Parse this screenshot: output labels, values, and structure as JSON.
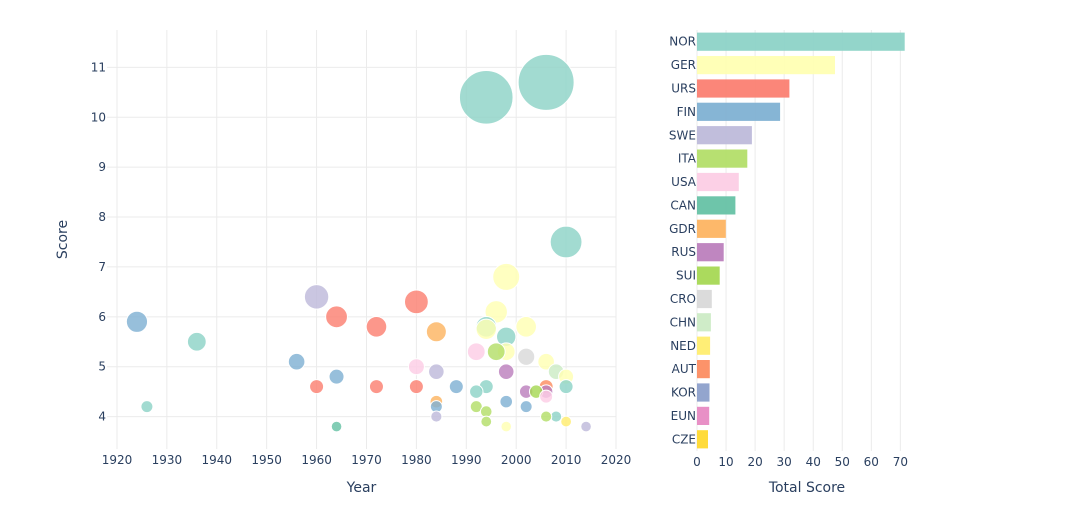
{
  "chart_data": [
    {
      "type": "scatter",
      "xlabel": "Year",
      "ylabel": "Score",
      "xlim": [
        1918,
        2020
      ],
      "ylim": [
        3.35,
        11.75
      ],
      "x_ticks": [
        "1920",
        "1930",
        "1940",
        "1950",
        "1960",
        "1970",
        "1980",
        "1990",
        "2000",
        "2010",
        "2020"
      ],
      "y_ticks": [
        "4",
        "5",
        "6",
        "7",
        "8",
        "9",
        "10",
        "11"
      ],
      "grid": true,
      "bubble_size": "score",
      "points": [
        {
          "country": "NOR",
          "x": 1994,
          "y": 10.4,
          "color": "#8dd3c7"
        },
        {
          "country": "NOR",
          "x": 2006,
          "y": 10.7,
          "color": "#8dd3c7"
        },
        {
          "country": "NOR",
          "x": 2010,
          "y": 7.5,
          "color": "#8dd3c7"
        },
        {
          "country": "NOR",
          "x": 1936,
          "y": 5.5,
          "color": "#8dd3c7"
        },
        {
          "country": "NOR",
          "x": 1994,
          "y": 5.8,
          "color": "#8dd3c7"
        },
        {
          "country": "NOR",
          "x": 1998,
          "y": 5.6,
          "color": "#8dd3c7"
        },
        {
          "country": "NOR",
          "x": 1926,
          "y": 4.2,
          "color": "#8dd3c7"
        },
        {
          "country": "NOR",
          "x": 1994,
          "y": 4.6,
          "color": "#8dd3c7"
        },
        {
          "country": "NOR",
          "x": 1992,
          "y": 4.5,
          "color": "#8dd3c7"
        },
        {
          "country": "NOR",
          "x": 2010,
          "y": 4.6,
          "color": "#8dd3c7"
        },
        {
          "country": "NOR",
          "x": 2008,
          "y": 4.0,
          "color": "#8dd3c7"
        },
        {
          "country": "GER",
          "x": 1998,
          "y": 6.8,
          "color": "#ffffb3"
        },
        {
          "country": "GER",
          "x": 1996,
          "y": 6.1,
          "color": "#ffffb3"
        },
        {
          "country": "GER",
          "x": 2002,
          "y": 5.8,
          "color": "#ffffb3"
        },
        {
          "country": "GER",
          "x": 1994,
          "y": 5.75,
          "color": "#ffffb3"
        },
        {
          "country": "GER",
          "x": 2006,
          "y": 5.1,
          "color": "#ffffb3"
        },
        {
          "country": "GER",
          "x": 2010,
          "y": 4.8,
          "color": "#ffffb3"
        },
        {
          "country": "GER",
          "x": 1998,
          "y": 5.3,
          "color": "#ffffb3"
        },
        {
          "country": "GER",
          "x": 1998,
          "y": 3.8,
          "color": "#ffffb3"
        },
        {
          "country": "URS",
          "x": 1980,
          "y": 6.3,
          "color": "#fb8072"
        },
        {
          "country": "URS",
          "x": 1964,
          "y": 6.0,
          "color": "#fb8072"
        },
        {
          "country": "URS",
          "x": 1972,
          "y": 5.8,
          "color": "#fb8072"
        },
        {
          "country": "URS",
          "x": 1960,
          "y": 4.6,
          "color": "#fb8072"
        },
        {
          "country": "URS",
          "x": 1972,
          "y": 4.6,
          "color": "#fb8072"
        },
        {
          "country": "URS",
          "x": 1980,
          "y": 4.6,
          "color": "#fb8072"
        },
        {
          "country": "FIN",
          "x": 1924,
          "y": 5.9,
          "color": "#80b1d3"
        },
        {
          "country": "FIN",
          "x": 1956,
          "y": 5.1,
          "color": "#80b1d3"
        },
        {
          "country": "FIN",
          "x": 1964,
          "y": 4.8,
          "color": "#80b1d3"
        },
        {
          "country": "FIN",
          "x": 1988,
          "y": 4.6,
          "color": "#80b1d3"
        },
        {
          "country": "FIN",
          "x": 1998,
          "y": 4.3,
          "color": "#80b1d3"
        },
        {
          "country": "FIN",
          "x": 2002,
          "y": 4.2,
          "color": "#80b1d3"
        },
        {
          "country": "FIN",
          "x": 1984,
          "y": 4.2,
          "color": "#80b1d3"
        },
        {
          "country": "SWE",
          "x": 1960,
          "y": 6.4,
          "color": "#bebada"
        },
        {
          "country": "SWE",
          "x": 1984,
          "y": 4.9,
          "color": "#bebada"
        },
        {
          "country": "SWE",
          "x": 1984,
          "y": 4.0,
          "color": "#bebada"
        },
        {
          "country": "SWE",
          "x": 2014,
          "y": 3.8,
          "color": "#bebada"
        },
        {
          "country": "ITA",
          "x": 1996,
          "y": 5.3,
          "color": "#b3de69"
        },
        {
          "country": "ITA",
          "x": 1992,
          "y": 4.2,
          "color": "#b3de69"
        },
        {
          "country": "ITA",
          "x": 1994,
          "y": 4.1,
          "color": "#b3de69"
        },
        {
          "country": "ITA",
          "x": 1994,
          "y": 3.9,
          "color": "#b3de69"
        },
        {
          "country": "ITA",
          "x": 2006,
          "y": 4.0,
          "color": "#b3de69"
        },
        {
          "country": "USA",
          "x": 1980,
          "y": 5.0,
          "color": "#fccde5"
        },
        {
          "country": "USA",
          "x": 1992,
          "y": 5.3,
          "color": "#fccde5"
        },
        {
          "country": "USA",
          "x": 2006,
          "y": 4.4,
          "color": "#fccde5"
        },
        {
          "country": "CAN",
          "x": 1964,
          "y": 3.8,
          "color": "#66c2a5"
        },
        {
          "country": "GDR",
          "x": 1984,
          "y": 5.7,
          "color": "#fdb462"
        },
        {
          "country": "GDR",
          "x": 1984,
          "y": 4.3,
          "color": "#fdb462"
        },
        {
          "country": "RUS",
          "x": 1998,
          "y": 4.9,
          "color": "#bc80bd"
        },
        {
          "country": "RUS",
          "x": 2002,
          "y": 4.5,
          "color": "#bc80bd"
        },
        {
          "country": "RUS",
          "x": 2006,
          "y": 4.5,
          "color": "#bc80bd"
        },
        {
          "country": "SUI",
          "x": 2004,
          "y": 4.5,
          "color": "#a6d854"
        },
        {
          "country": "CRO",
          "x": 2002,
          "y": 5.2,
          "color": "#d9d9d9"
        },
        {
          "country": "CHN",
          "x": 2008,
          "y": 4.9,
          "color": "#ccebc5"
        },
        {
          "country": "NED",
          "x": 2010,
          "y": 3.9,
          "color": "#ffed6f"
        },
        {
          "country": "AUT",
          "x": 2006,
          "y": 4.6,
          "color": "#fc8d62"
        }
      ]
    },
    {
      "type": "bar",
      "orientation": "horizontal",
      "xlabel": "Total Score",
      "xlim": [
        0,
        74
      ],
      "x_ticks": [
        "0",
        "10",
        "20",
        "30",
        "40",
        "50",
        "60",
        "70"
      ],
      "categories": [
        "NOR",
        "GER",
        "URS",
        "FIN",
        "SWE",
        "ITA",
        "USA",
        "CAN",
        "GDR",
        "RUS",
        "SUI",
        "CRO",
        "CHN",
        "NED",
        "AUT",
        "KOR",
        "EUN",
        "CZE"
      ],
      "values": [
        71.5,
        47.5,
        31.8,
        28.6,
        18.9,
        17.3,
        14.4,
        13.2,
        9.9,
        9.2,
        7.8,
        5.1,
        4.8,
        4.5,
        4.4,
        4.3,
        4.2,
        3.8
      ],
      "colors": [
        "#8dd3c7",
        "#ffffb3",
        "#fb8072",
        "#80b1d3",
        "#bebada",
        "#b3de69",
        "#fccde5",
        "#66c2a5",
        "#fdb462",
        "#bc80bd",
        "#a6d854",
        "#d9d9d9",
        "#ccebc5",
        "#ffed6f",
        "#fc8d62",
        "#8da0cb",
        "#e78ac3",
        "#ffd92f"
      ],
      "grid": true
    }
  ]
}
